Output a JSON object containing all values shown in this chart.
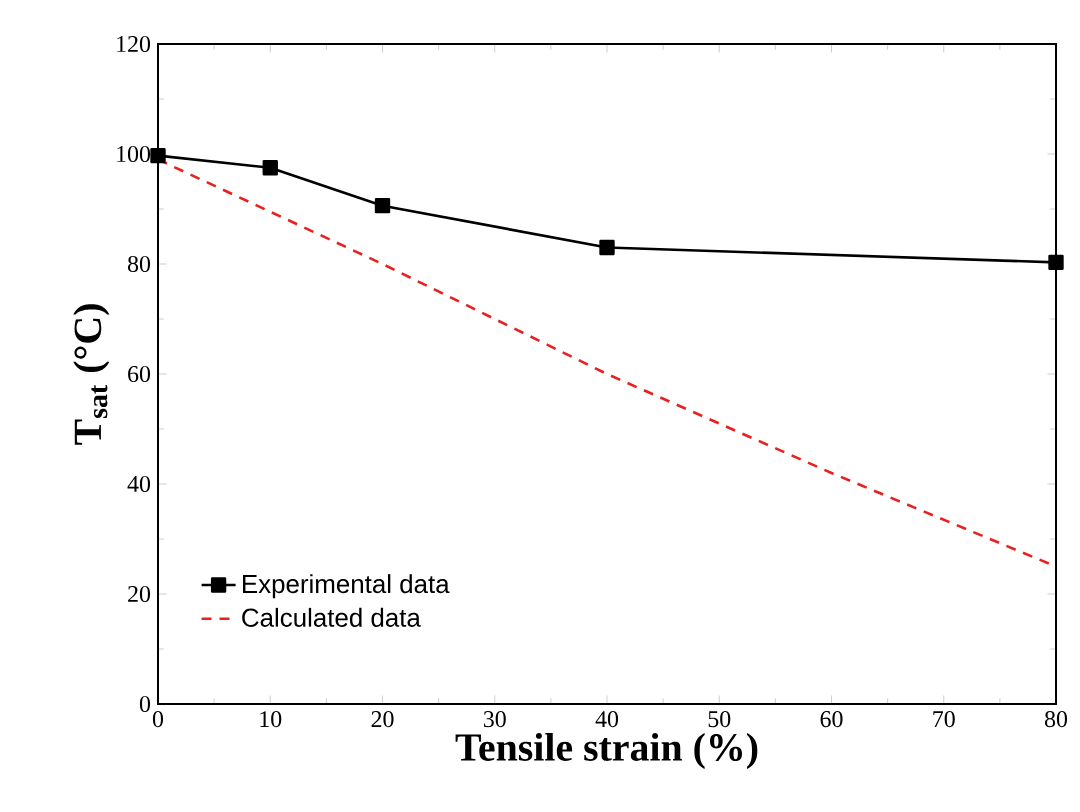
{
  "chart_data": {
    "type": "line",
    "xlabel": "Tensile strain (%)",
    "ylabel": "T$_{sat}$ (°C)",
    "xlim": [
      0,
      80
    ],
    "xticks": [
      0,
      10,
      20,
      30,
      40,
      50,
      60,
      70,
      80
    ],
    "ylim": [
      0,
      120
    ],
    "yticks": [
      0,
      20,
      40,
      60,
      80,
      100,
      120
    ],
    "grid": false,
    "legend": "bottom left",
    "series": [
      {
        "name": "Experimental data",
        "color": "#000000",
        "marker": "square",
        "line_style": "solid",
        "x": [
          0,
          10,
          20,
          40,
          80
        ],
        "values": [
          99.7,
          97.5,
          90.6,
          83.0,
          80.3
        ]
      },
      {
        "name": "Calculated data",
        "color": "#e8201e",
        "marker": "none",
        "line_style": "dashed",
        "x": [
          0,
          10,
          20,
          40,
          60,
          80
        ],
        "values": [
          99,
          89.5,
          80,
          60,
          42,
          25
        ]
      }
    ]
  }
}
